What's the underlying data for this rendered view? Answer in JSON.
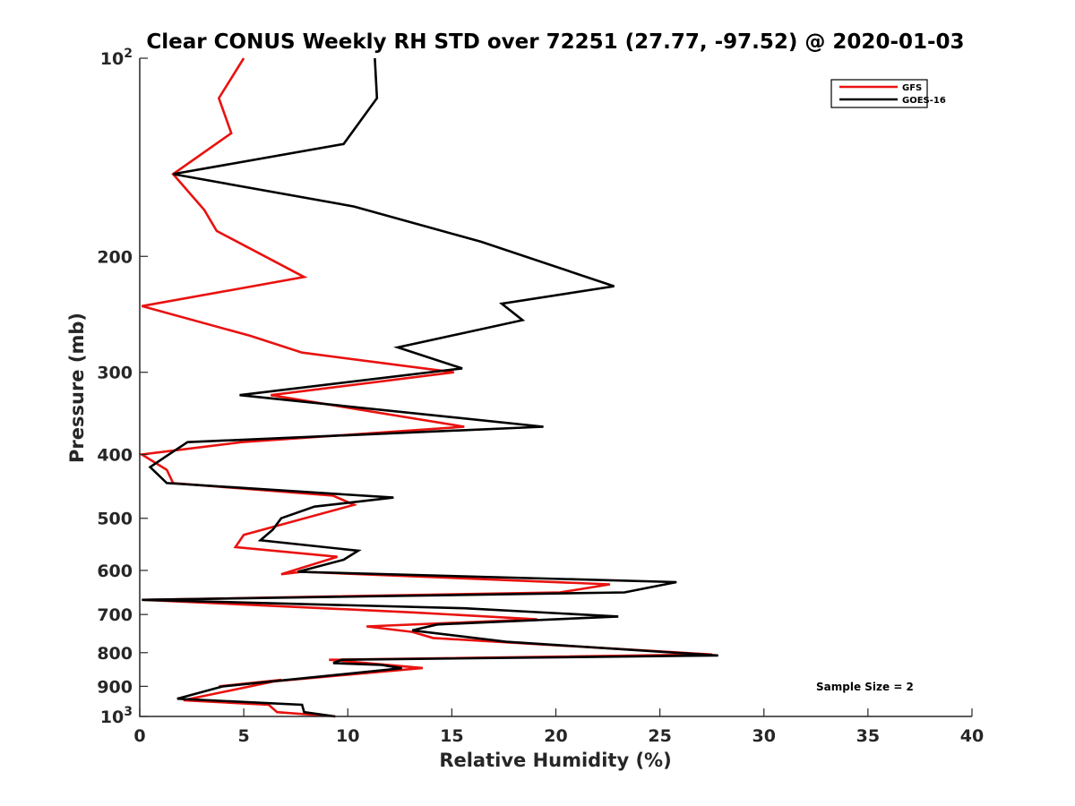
{
  "chart_data": {
    "type": "line",
    "title": "Clear CONUS Weekly RH STD over 72251 (27.77, -97.52) @ 2020-01-03",
    "xlabel": "Relative Humidity (%)",
    "ylabel": "Pressure (mb)",
    "xlim": [
      0,
      40
    ],
    "ylim": [
      100,
      1000
    ],
    "y_scale": "log",
    "y_reversed": true,
    "x_ticks": [
      "0",
      "5",
      "10",
      "15",
      "20",
      "25",
      "30",
      "35",
      "40"
    ],
    "y_ticks": [
      {
        "value": 100,
        "base": "10",
        "exp": "2"
      },
      {
        "value": 200,
        "label": "200"
      },
      {
        "value": 300,
        "label": "300"
      },
      {
        "value": 400,
        "label": "400"
      },
      {
        "value": 500,
        "label": "500"
      },
      {
        "value": 600,
        "label": "600"
      },
      {
        "value": 700,
        "label": "700"
      },
      {
        "value": 800,
        "label": "800"
      },
      {
        "value": 900,
        "label": "900"
      },
      {
        "value": 1000,
        "base": "10",
        "exp": "3"
      }
    ],
    "grid": false,
    "legend_position": "top-right",
    "series": [
      {
        "name": "GFS",
        "color": "#e8120f",
        "points": [
          [
            5.0,
            100
          ],
          [
            3.8,
            115
          ],
          [
            4.4,
            130
          ],
          [
            1.6,
            150
          ],
          [
            3.1,
            170
          ],
          [
            3.7,
            183
          ],
          [
            7.9,
            215
          ],
          [
            0.1,
            238
          ],
          [
            5.3,
            264
          ],
          [
            7.8,
            280
          ],
          [
            15.1,
            300
          ],
          [
            6.3,
            325
          ],
          [
            15.6,
            363
          ],
          [
            4.9,
            383
          ],
          [
            0.1,
            400
          ],
          [
            1.3,
            422
          ],
          [
            1.6,
            442
          ],
          [
            9.3,
            462
          ],
          [
            10.3,
            477
          ],
          [
            5.0,
            530
          ],
          [
            4.6,
            553
          ],
          [
            9.5,
            572
          ],
          [
            6.8,
            608
          ],
          [
            7.8,
            603
          ],
          [
            22.6,
            630
          ],
          [
            20.2,
            648
          ],
          [
            0.2,
            665
          ],
          [
            13.2,
            695
          ],
          [
            19.1,
            712
          ],
          [
            10.9,
            730
          ],
          [
            13.1,
            744
          ],
          [
            14.1,
            760
          ],
          [
            27.5,
            805
          ],
          [
            9.1,
            820
          ],
          [
            13.6,
            844
          ],
          [
            3.8,
            900
          ],
          [
            6.8,
            880
          ],
          [
            2.1,
            945
          ],
          [
            6.2,
            960
          ],
          [
            6.6,
            985
          ],
          [
            9.4,
            1000
          ]
        ]
      },
      {
        "name": "GOES-16",
        "color": "#000000",
        "points": [
          [
            11.3,
            100
          ],
          [
            11.4,
            115
          ],
          [
            9.8,
            135
          ],
          [
            1.6,
            150
          ],
          [
            10.3,
            168
          ],
          [
            16.4,
            190
          ],
          [
            22.8,
            222
          ],
          [
            17.4,
            236
          ],
          [
            18.4,
            250
          ],
          [
            12.4,
            275
          ],
          [
            15.5,
            296
          ],
          [
            4.8,
            325
          ],
          [
            19.4,
            363
          ],
          [
            2.3,
            383
          ],
          [
            1.5,
            398
          ],
          [
            0.5,
            418
          ],
          [
            1.3,
            442
          ],
          [
            12.2,
            465
          ],
          [
            8.4,
            480
          ],
          [
            6.8,
            500
          ],
          [
            6.4,
            520
          ],
          [
            5.8,
            540
          ],
          [
            10.5,
            560
          ],
          [
            9.8,
            578
          ],
          [
            7.6,
            603
          ],
          [
            25.8,
            625
          ],
          [
            23.3,
            648
          ],
          [
            0.1,
            665
          ],
          [
            15.6,
            685
          ],
          [
            23.0,
            705
          ],
          [
            14.3,
            725
          ],
          [
            13.1,
            740
          ],
          [
            17.6,
            770
          ],
          [
            27.8,
            808
          ],
          [
            9.7,
            820
          ],
          [
            9.3,
            830
          ],
          [
            11.6,
            835
          ],
          [
            12.6,
            845
          ],
          [
            4.0,
            900
          ],
          [
            1.8,
            940
          ],
          [
            7.8,
            960
          ],
          [
            7.9,
            985
          ],
          [
            9.4,
            1000
          ]
        ]
      }
    ],
    "annotation": "Sample Size = 2"
  }
}
